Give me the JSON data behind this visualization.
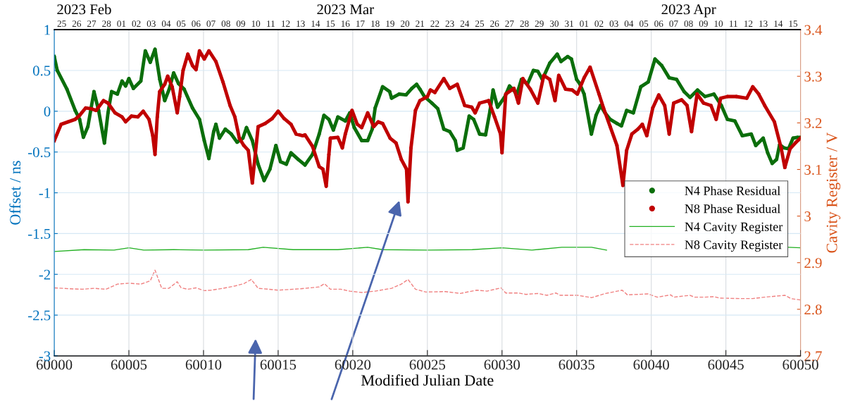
{
  "chart_data": {
    "type": "line",
    "xlabel": "Modified Julian Date",
    "ylabel": "Offset / ns",
    "y2label": "Cavity Register / V",
    "xlim": [
      60000,
      60050
    ],
    "xticks": [
      60000,
      60005,
      60010,
      60015,
      60020,
      60025,
      60030,
      60035,
      60040,
      60045,
      60050
    ],
    "ylim": [
      -3,
      1
    ],
    "yticks": [
      -3,
      -2.5,
      -2,
      -1.5,
      -1,
      -0.5,
      0,
      0.5,
      1
    ],
    "y2lim": [
      2.7,
      3.4
    ],
    "y2ticks": [
      2.7,
      2.8,
      2.9,
      3,
      3.1,
      3.2,
      3.3,
      3.4
    ],
    "x2lim": [
      "2023-02-25",
      "2023-04-16"
    ],
    "x2ticks": [
      {
        "value": "2023-02-25T12:00",
        "label": "25"
      },
      {
        "value": "2023-02-26T12:00",
        "label": "26"
      },
      {
        "value": "2023-02-27T12:00",
        "label": "27"
      },
      {
        "value": "2023-02-28T12:00",
        "label": "28"
      },
      {
        "value": "2023-03-01T12:00",
        "label": "01"
      },
      {
        "value": "2023-03-02T12:00",
        "label": "02"
      },
      {
        "value": "2023-03-03T12:00",
        "label": "03"
      },
      {
        "value": "2023-03-04T12:00",
        "label": "04"
      },
      {
        "value": "2023-03-05T12:00",
        "label": "05"
      },
      {
        "value": "2023-03-06T12:00",
        "label": "06"
      },
      {
        "value": "2023-03-07T12:00",
        "label": "07"
      },
      {
        "value": "2023-03-08T12:00",
        "label": "08"
      },
      {
        "value": "2023-03-09T12:00",
        "label": "09"
      },
      {
        "value": "2023-03-10T12:00",
        "label": "10"
      },
      {
        "value": "2023-03-11T12:00",
        "label": "11"
      },
      {
        "value": "2023-03-12T12:00",
        "label": "12"
      },
      {
        "value": "2023-03-13T12:00",
        "label": "13"
      },
      {
        "value": "2023-03-14T12:00",
        "label": "14"
      },
      {
        "value": "2023-03-15T12:00",
        "label": "15"
      },
      {
        "value": "2023-03-16T12:00",
        "label": "16"
      },
      {
        "value": "2023-03-17T12:00",
        "label": "17"
      },
      {
        "value": "2023-03-18T12:00",
        "label": "18"
      },
      {
        "value": "2023-03-19T12:00",
        "label": "19"
      },
      {
        "value": "2023-03-20T12:00",
        "label": "20"
      },
      {
        "value": "2023-03-21T12:00",
        "label": "21"
      },
      {
        "value": "2023-03-22T12:00",
        "label": "22"
      },
      {
        "value": "2023-03-23T12:00",
        "label": "23"
      },
      {
        "value": "2023-03-24T12:00",
        "label": "24"
      },
      {
        "value": "2023-03-25T12:00",
        "label": "25"
      },
      {
        "value": "2023-03-26T12:00",
        "label": "26"
      },
      {
        "value": "2023-03-27T12:00",
        "label": "27"
      },
      {
        "value": "2023-03-28T12:00",
        "label": "28"
      },
      {
        "value": "2023-03-29T12:00",
        "label": "29"
      },
      {
        "value": "2023-03-30T12:00",
        "label": "30"
      },
      {
        "value": "2023-03-31T12:00",
        "label": "31"
      },
      {
        "value": "2023-04-01T12:00",
        "label": "01"
      },
      {
        "value": "2023-04-02T12:00",
        "label": "02"
      },
      {
        "value": "2023-04-03T12:00",
        "label": "03"
      },
      {
        "value": "2023-04-04T12:00",
        "label": "04"
      },
      {
        "value": "2023-04-05T12:00",
        "label": "05"
      },
      {
        "value": "2023-04-06T12:00",
        "label": "06"
      },
      {
        "value": "2023-04-07T12:00",
        "label": "07"
      },
      {
        "value": "2023-04-08T12:00",
        "label": "08"
      },
      {
        "value": "2023-04-09T12:00",
        "label": "09"
      },
      {
        "value": "2023-04-10T12:00",
        "label": "10"
      },
      {
        "value": "2023-04-11T12:00",
        "label": "11"
      },
      {
        "value": "2023-04-12T12:00",
        "label": "12"
      },
      {
        "value": "2023-04-13T12:00",
        "label": "13"
      },
      {
        "value": "2023-04-14T12:00",
        "label": "14"
      },
      {
        "value": "2023-04-15T12:00",
        "label": "15"
      }
    ],
    "annotations": [
      "2023 Feb",
      "2023 Mar",
      "2023 Apr"
    ],
    "grid": true,
    "legend": "right",
    "series": [
      {
        "name": "N4 Phase Residual",
        "color": "#0b6e0b",
        "marker": "circle",
        "line_style": "solid",
        "x": [
          60000,
          60000.2,
          60000.85,
          60001.4,
          60001.7,
          60001.95,
          60002.25,
          60002.66,
          60002.97,
          60003.36,
          60003.6,
          60003.84,
          60004.23,
          60004.54,
          60004.78,
          60005,
          60005.3,
          60005.8,
          60006.1,
          60006.43,
          60006.75,
          60007.07,
          60007.4,
          60007.7,
          60008,
          60008.32,
          60008.7,
          60009.26,
          60009.73,
          60010.05,
          60010.36,
          60010.68,
          60010.83,
          60011.07,
          60011.46,
          60011.86,
          60012.25,
          60012.64,
          60012.88,
          60013.27,
          60013.66,
          60014.06,
          60014.45,
          60014.85,
          60015.16,
          60015.55,
          60015.86,
          60016.34,
          60016.8,
          60017.3,
          60017.75,
          60018.07,
          60018.4,
          60018.7,
          60019,
          60019.5,
          60019.8,
          60020.1,
          60020.6,
          60021,
          60021.3,
          60021.5,
          60022,
          60022.47,
          60022.6,
          60023.1,
          60023.57,
          60023.96,
          60024.28,
          60024.5,
          60024.8,
          60025.3,
          60025.7,
          60026.1,
          60026.5,
          60026.87,
          60027,
          60027.4,
          60027.8,
          60028.1,
          60028.5,
          60028.9,
          60029.2,
          60029.4,
          60029.7,
          60030.2,
          60030.5,
          60031,
          60031.3,
          60031.7,
          60032.1,
          60032.4,
          60032.7,
          60033.2,
          60033.7,
          60033.95,
          60034.4,
          60034.65,
          60035,
          60035.2,
          60035.5,
          60035.99,
          60036.3,
          60036.6,
          60036.9,
          60037.25,
          60037.7,
          60038,
          60038.35,
          60038.8,
          60039.3,
          60039.8,
          60040.25,
          60040.7,
          60041.2,
          60041.7,
          60042.2,
          60042.6,
          60043.1,
          60043.6,
          60044.2,
          60044.7,
          60045.1,
          60045.6,
          60046.1,
          60046.7,
          60047,
          60047.5,
          60047.8,
          60048.1,
          60048.4,
          60048.6,
          60048.9,
          60049.2,
          60049.5,
          60049.8,
          60050
        ],
        "values": [
          0.67,
          0.5,
          0.27,
          0.01,
          -0.1,
          -0.32,
          -0.19,
          0.24,
          0.01,
          -0.39,
          -0.02,
          0.24,
          0.21,
          0.37,
          0.31,
          0.4,
          0.28,
          0.37,
          0.74,
          0.6,
          0.76,
          0.39,
          0.13,
          0.27,
          0.47,
          0.34,
          0.27,
          0.04,
          -0.1,
          -0.36,
          -0.58,
          -0.25,
          -0.16,
          -0.33,
          -0.22,
          -0.28,
          -0.38,
          -0.33,
          -0.2,
          -0.36,
          -0.65,
          -0.85,
          -0.71,
          -0.42,
          -0.62,
          -0.65,
          -0.51,
          -0.59,
          -0.66,
          -0.53,
          -0.28,
          -0.05,
          -0.1,
          -0.23,
          -0.07,
          -0.12,
          -0.02,
          -0.2,
          -0.36,
          -0.36,
          -0.22,
          0.04,
          0.3,
          0.24,
          0.16,
          0.21,
          0.2,
          0.28,
          0.33,
          0.27,
          0.18,
          0.1,
          0.03,
          -0.22,
          -0.25,
          -0.36,
          -0.48,
          -0.45,
          -0.06,
          -0.1,
          -0.28,
          -0.29,
          0.01,
          0.26,
          0.05,
          0.18,
          0.31,
          0.21,
          0.39,
          0.33,
          0.5,
          0.49,
          0.39,
          0.59,
          0.7,
          0.61,
          0.67,
          0.64,
          0.39,
          0.34,
          0.21,
          -0.28,
          -0.05,
          0.07,
          -0.02,
          -0.1,
          -0.15,
          -0.18,
          0.01,
          -0.02,
          0.3,
          0.36,
          0.64,
          0.56,
          0.41,
          0.39,
          0.24,
          0.17,
          0.26,
          0.18,
          0.21,
          0.07,
          -0.1,
          -0.12,
          -0.3,
          -0.28,
          -0.42,
          -0.33,
          -0.51,
          -0.64,
          -0.59,
          -0.41,
          -0.45,
          -0.46,
          -0.33,
          -0.32,
          -0.32
        ]
      },
      {
        "name": "N8 Phase Residual",
        "color": "#c00000",
        "marker": "circle",
        "line_style": "solid",
        "x": [
          60000,
          60000.46,
          60000.93,
          60001.4,
          60001.7,
          60002.1,
          60002.5,
          60002.8,
          60003.3,
          60003.6,
          60004.07,
          60004.54,
          60004.78,
          60005.17,
          60005.6,
          60005.96,
          60006.35,
          60006.6,
          60006.75,
          60006.9,
          60007.06,
          60007.4,
          60007.6,
          60007.9,
          60008.24,
          60008.4,
          60008.63,
          60008.95,
          60009.26,
          60009.5,
          60009.73,
          60010.05,
          60010.36,
          60010.83,
          60011.3,
          60011.78,
          60012.1,
          60012.4,
          60012.7,
          60013,
          60013.27,
          60013.66,
          60014.13,
          60014.6,
          60015,
          60015.4,
          60015.86,
          60016.2,
          60016.65,
          60016.8,
          60017.3,
          60017.75,
          60018,
          60018.22,
          60018.4,
          60018.5,
          60019,
          60019.3,
          60019.5,
          60019.95,
          60020.3,
          60020.6,
          60021,
          60021.4,
          60021.7,
          60022,
          60022.5,
          60022.9,
          60023.25,
          60023.6,
          60023.7,
          60023.9,
          60024.2,
          60024.5,
          60025,
          60025.2,
          60025.5,
          60026.1,
          60026.5,
          60027,
          60027.5,
          60027.97,
          60028.2,
          60028.5,
          60029.1,
          60029.5,
          60029.9,
          60030,
          60030.25,
          60030.8,
          60031.1,
          60031.4,
          60031.9,
          60032.4,
          60032.8,
          60033.2,
          60033.55,
          60033.8,
          60034.26,
          60034.7,
          60035.05,
          60035.5,
          60035.9,
          60036.5,
          60036.8,
          60037.25,
          60037.7,
          60038.1,
          60038.35,
          60038.7,
          60039.1,
          60039.4,
          60039.7,
          60040.1,
          60040.5,
          60040.9,
          60041.2,
          60041.5,
          60042.04,
          60042.4,
          60042.7,
          60043.07,
          60043.5,
          60044,
          60044.35,
          60044.65,
          60045.1,
          60045.7,
          60046.4,
          60046.8,
          60047.2,
          60047.6,
          60048.25,
          60048.7,
          60048.95,
          60049.3,
          60049.7,
          60050
        ],
        "values": [
          -0.36,
          -0.16,
          -0.13,
          -0.1,
          -0.05,
          0.04,
          0.03,
          0.01,
          0.13,
          0.1,
          -0.02,
          -0.07,
          -0.13,
          -0.06,
          -0.07,
          0.0,
          -0.1,
          -0.3,
          -0.53,
          -0.07,
          0.24,
          0.33,
          0.43,
          0.3,
          -0.02,
          0.18,
          0.5,
          0.7,
          0.56,
          0.51,
          0.74,
          0.64,
          0.74,
          0.61,
          0.36,
          0.07,
          -0.07,
          -0.33,
          -0.42,
          -0.48,
          -0.88,
          -0.19,
          -0.15,
          -0.09,
          0.0,
          -0.09,
          -0.16,
          -0.28,
          -0.3,
          -0.29,
          -0.43,
          -0.68,
          -0.71,
          -0.92,
          -0.53,
          -0.33,
          -0.32,
          -0.45,
          -0.28,
          0.01,
          -0.16,
          -0.2,
          -0.02,
          -0.19,
          -0.13,
          -0.15,
          -0.33,
          -0.39,
          -0.59,
          -0.71,
          -1.11,
          -0.45,
          0.01,
          0.13,
          0.18,
          0.26,
          0.23,
          0.4,
          0.28,
          0.33,
          0.07,
          0.05,
          -0.02,
          0.1,
          0.13,
          -0.07,
          -0.28,
          -0.51,
          0.21,
          0.28,
          0.1,
          0.4,
          0.27,
          0.1,
          0.44,
          0.39,
          0.13,
          0.44,
          0.27,
          0.26,
          0.21,
          0.41,
          0.54,
          0.21,
          0.04,
          -0.19,
          -0.42,
          -0.91,
          -0.48,
          -0.28,
          -0.22,
          -0.16,
          -0.3,
          0.04,
          0.2,
          0.07,
          -0.28,
          0.1,
          0.14,
          0.07,
          -0.25,
          0.21,
          0.1,
          0.07,
          -0.1,
          0.16,
          0.18,
          0.18,
          0.16,
          0.3,
          0.21,
          0.07,
          -0.13,
          -0.45,
          -0.69,
          -0.46,
          -0.38,
          -0.33
        ]
      },
      {
        "name": "N4 Cavity Register",
        "color": "#22b022",
        "axis": "y2",
        "line_style": "solid",
        "x": [
          60000,
          60002,
          60004,
          60005,
          60006,
          60008,
          60010,
          60013,
          60014,
          60016,
          60019,
          60021,
          60022,
          60025,
          60028,
          60030,
          60032,
          60034,
          60036,
          60037,
          60040,
          60043,
          60045,
          60048,
          60049.2,
          60050
        ],
        "values": [
          2.924,
          2.928,
          2.927,
          2.932,
          2.927,
          2.928,
          2.927,
          2.928,
          2.933,
          2.928,
          2.928,
          2.933,
          2.928,
          2.927,
          2.928,
          2.932,
          2.927,
          2.933,
          2.933,
          2.927,
          null,
          null,
          null,
          null,
          2.933,
          2.932
        ]
      },
      {
        "name": "N8 Cavity Register",
        "color": "#f08080",
        "axis": "y2",
        "line_style": "dashed",
        "x": [
          60000,
          60001.08,
          60001.87,
          60002.67,
          60003.46,
          60004.23,
          60005,
          60005.8,
          60006.43,
          60006.75,
          60007.2,
          60007.68,
          60008.24,
          60008.5,
          60008.95,
          60009.5,
          60010.05,
          60010.5,
          60011.3,
          60012.1,
          60012.7,
          60013.2,
          60013.66,
          60014.4,
          60015,
          60016,
          60016.5,
          60017.75,
          60018.1,
          60018.5,
          60019.2,
          60019.8,
          60020.6,
          60021.5,
          60022.6,
          60023.25,
          60023.7,
          60024.2,
          60024.9,
          60026.2,
          60027.2,
          60028.3,
          60029,
          60029.93,
          60030.25,
          60031.1,
          60031.6,
          60032.4,
          60033,
          60033.6,
          60033.9,
          60035.05,
          60036,
          60036.95,
          60038.05,
          60038.4,
          60039.8,
          60040.4,
          60041.3,
          60041.5,
          60042.6,
          60042.9,
          60043.5,
          60044.2,
          60044.6,
          60045.9,
          60046.8,
          60047.6,
          60048.96,
          60049.35,
          60050
        ],
        "values": [
          2.846,
          2.844,
          2.843,
          2.845,
          2.843,
          2.854,
          2.856,
          2.854,
          2.861,
          2.884,
          2.845,
          2.845,
          2.859,
          2.846,
          2.843,
          2.846,
          2.84,
          2.841,
          2.845,
          2.85,
          2.855,
          2.864,
          2.845,
          2.843,
          2.841,
          2.843,
          2.844,
          2.848,
          2.855,
          2.843,
          2.843,
          2.839,
          2.836,
          2.839,
          2.845,
          2.854,
          2.864,
          2.843,
          2.837,
          2.838,
          2.834,
          2.841,
          2.839,
          2.846,
          2.835,
          2.835,
          2.832,
          2.834,
          2.83,
          2.835,
          2.83,
          2.83,
          2.825,
          2.834,
          2.841,
          2.831,
          2.833,
          2.826,
          2.831,
          2.826,
          2.83,
          2.826,
          2.826,
          2.827,
          2.824,
          2.823,
          2.823,
          2.826,
          2.83,
          2.823,
          2.82
        ]
      }
    ]
  }
}
